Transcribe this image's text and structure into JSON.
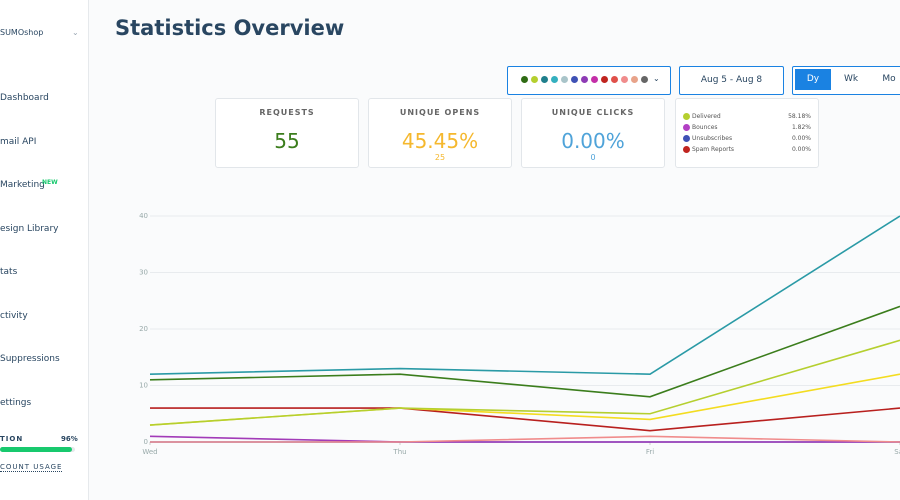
{
  "sidebar": {
    "brand": "SUMOshop",
    "nav": [
      "Dashboard",
      "mail API",
      "Marketing",
      "esign Library",
      "tats",
      "ctivity",
      "Suppressions",
      "ettings"
    ],
    "badge": "NEW",
    "usage": {
      "label": "TION",
      "percent": 96,
      "percent_label": "96%",
      "link": "COUNT USAGE"
    }
  },
  "header": {
    "title": "Statistics Overview",
    "date_range": "Aug 5 - Aug 8",
    "periods": [
      "Dy",
      "Wk",
      "Mo"
    ]
  },
  "cards": [
    {
      "title": "REQUESTS",
      "value": "55"
    },
    {
      "title": "UNIQUE OPENS",
      "value": "45.45%",
      "sub": "25"
    },
    {
      "title": "UNIQUE CLICKS",
      "value": "0.00%",
      "sub": "0"
    }
  ],
  "legend": [
    {
      "label": "Delivered",
      "value": "58.18%",
      "color": "#b5cf2f"
    },
    {
      "label": "Bounces",
      "value": "1.82%",
      "color": "#b23fc4"
    },
    {
      "label": "Unsubscribes",
      "value": "0.00%",
      "color": "#3f51b5"
    },
    {
      "label": "Spam Reports",
      "value": "0.00%",
      "color": "#c0241f"
    }
  ],
  "chart_data": {
    "type": "line",
    "categories": [
      "Wed",
      "Thu",
      "Fri",
      "Sat"
    ],
    "ylim": [
      0,
      40
    ],
    "yticks": [
      0,
      10,
      20,
      30,
      40
    ],
    "grid": true,
    "series": [
      {
        "color": "#3f51b5",
        "values": [
          0,
          0,
          0,
          0
        ]
      },
      {
        "color": "#a23bb8",
        "values": [
          1,
          0,
          0,
          0
        ]
      },
      {
        "color": "#f08c8c",
        "values": [
          0,
          0,
          1,
          0
        ]
      },
      {
        "color": "#b8201e",
        "values": [
          6,
          6,
          2,
          6
        ]
      },
      {
        "color": "#f3dc20",
        "values": [
          3,
          6,
          4,
          12
        ]
      },
      {
        "color": "#b5cf2f",
        "values": [
          3,
          6,
          5,
          18
        ]
      },
      {
        "color": "#3b7d1c",
        "values": [
          11,
          12,
          8,
          24
        ]
      },
      {
        "color": "#2a9aa6",
        "values": [
          12,
          13,
          12,
          40
        ]
      }
    ]
  }
}
